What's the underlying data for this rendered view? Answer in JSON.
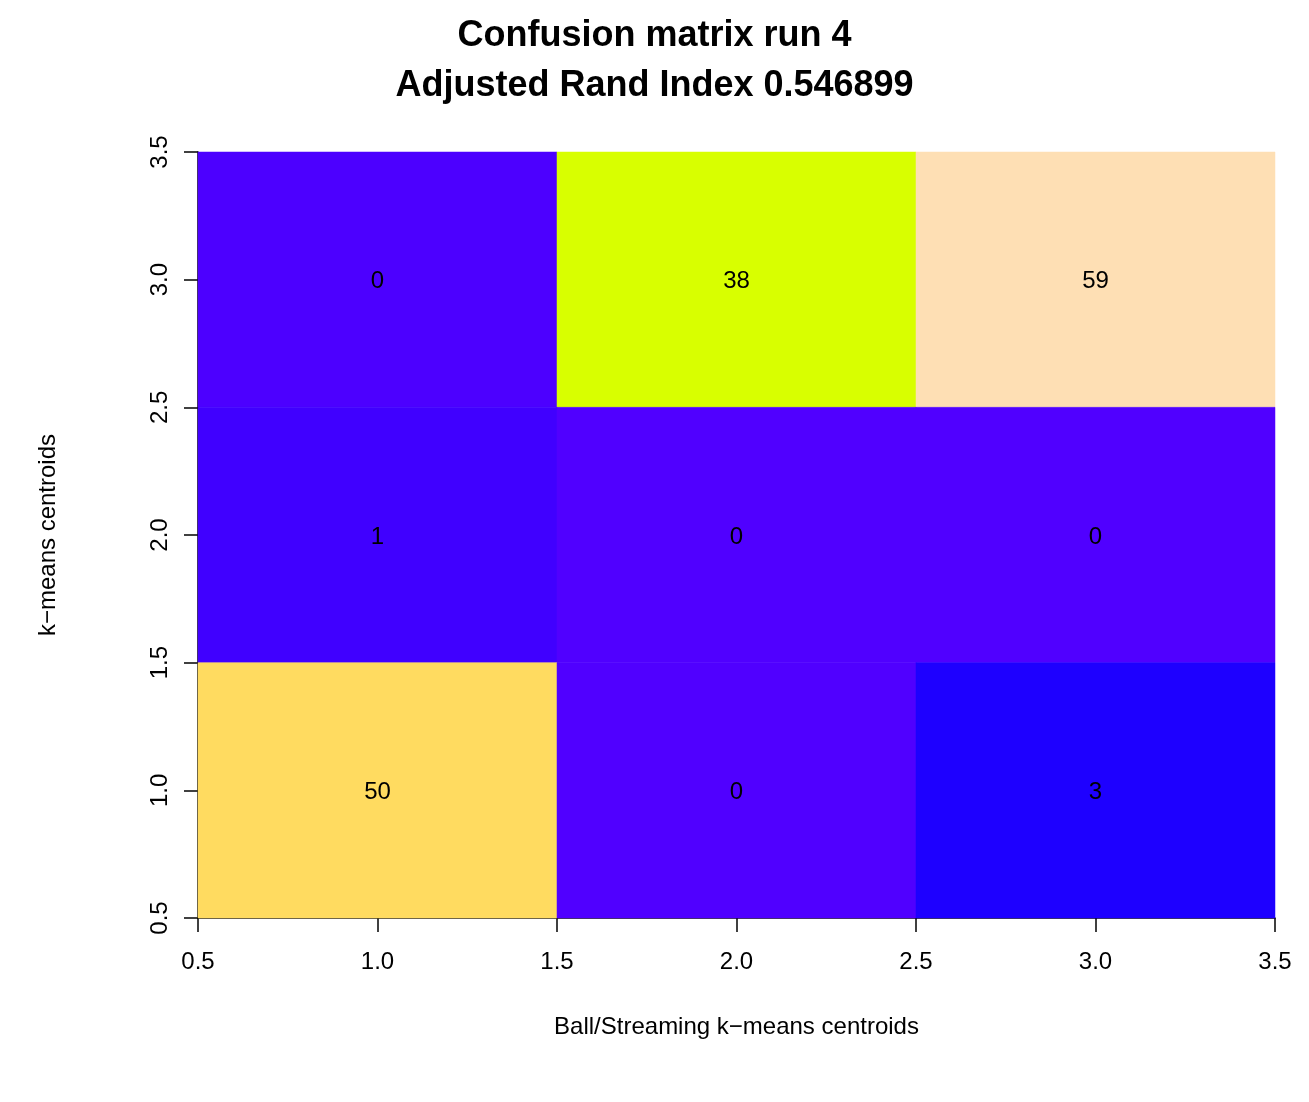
{
  "chart_data": {
    "type": "heatmap",
    "title": "Confusion matrix run 4",
    "subtitle": "Adjusted Rand Index 0.546899",
    "xlabel": "Ball/Streaming k−means centroids",
    "ylabel": "k−means centroids",
    "x": [
      1,
      2,
      3
    ],
    "y": [
      3,
      2,
      1
    ],
    "cells": [
      [
        0,
        38,
        59
      ],
      [
        1,
        0,
        0
      ],
      [
        50,
        0,
        3
      ]
    ],
    "colors": [
      [
        "#4c00ff",
        "#d8ff00",
        "#fedfb4"
      ],
      [
        "#4000ff",
        "#5000ff",
        "#5000ff"
      ],
      [
        "#ffdb60",
        "#5000ff",
        "#1e00ff"
      ]
    ],
    "data_labels": true,
    "xlim": [
      0.5,
      3.5
    ],
    "xticks": [
      0.5,
      {
        "value": 1,
        "label": "1.0"
      },
      1.5,
      {
        "value": 2,
        "label": "2.0"
      },
      2.5,
      {
        "value": 3,
        "label": "3.0"
      },
      3.5
    ],
    "ylim": [
      0.5,
      3.5
    ],
    "yticks": [
      0.5,
      {
        "value": 1,
        "label": "1.0"
      },
      1.5,
      {
        "value": 2,
        "label": "2.0"
      },
      2.5,
      {
        "value": 3,
        "label": "3.0"
      },
      3.5
    ]
  }
}
